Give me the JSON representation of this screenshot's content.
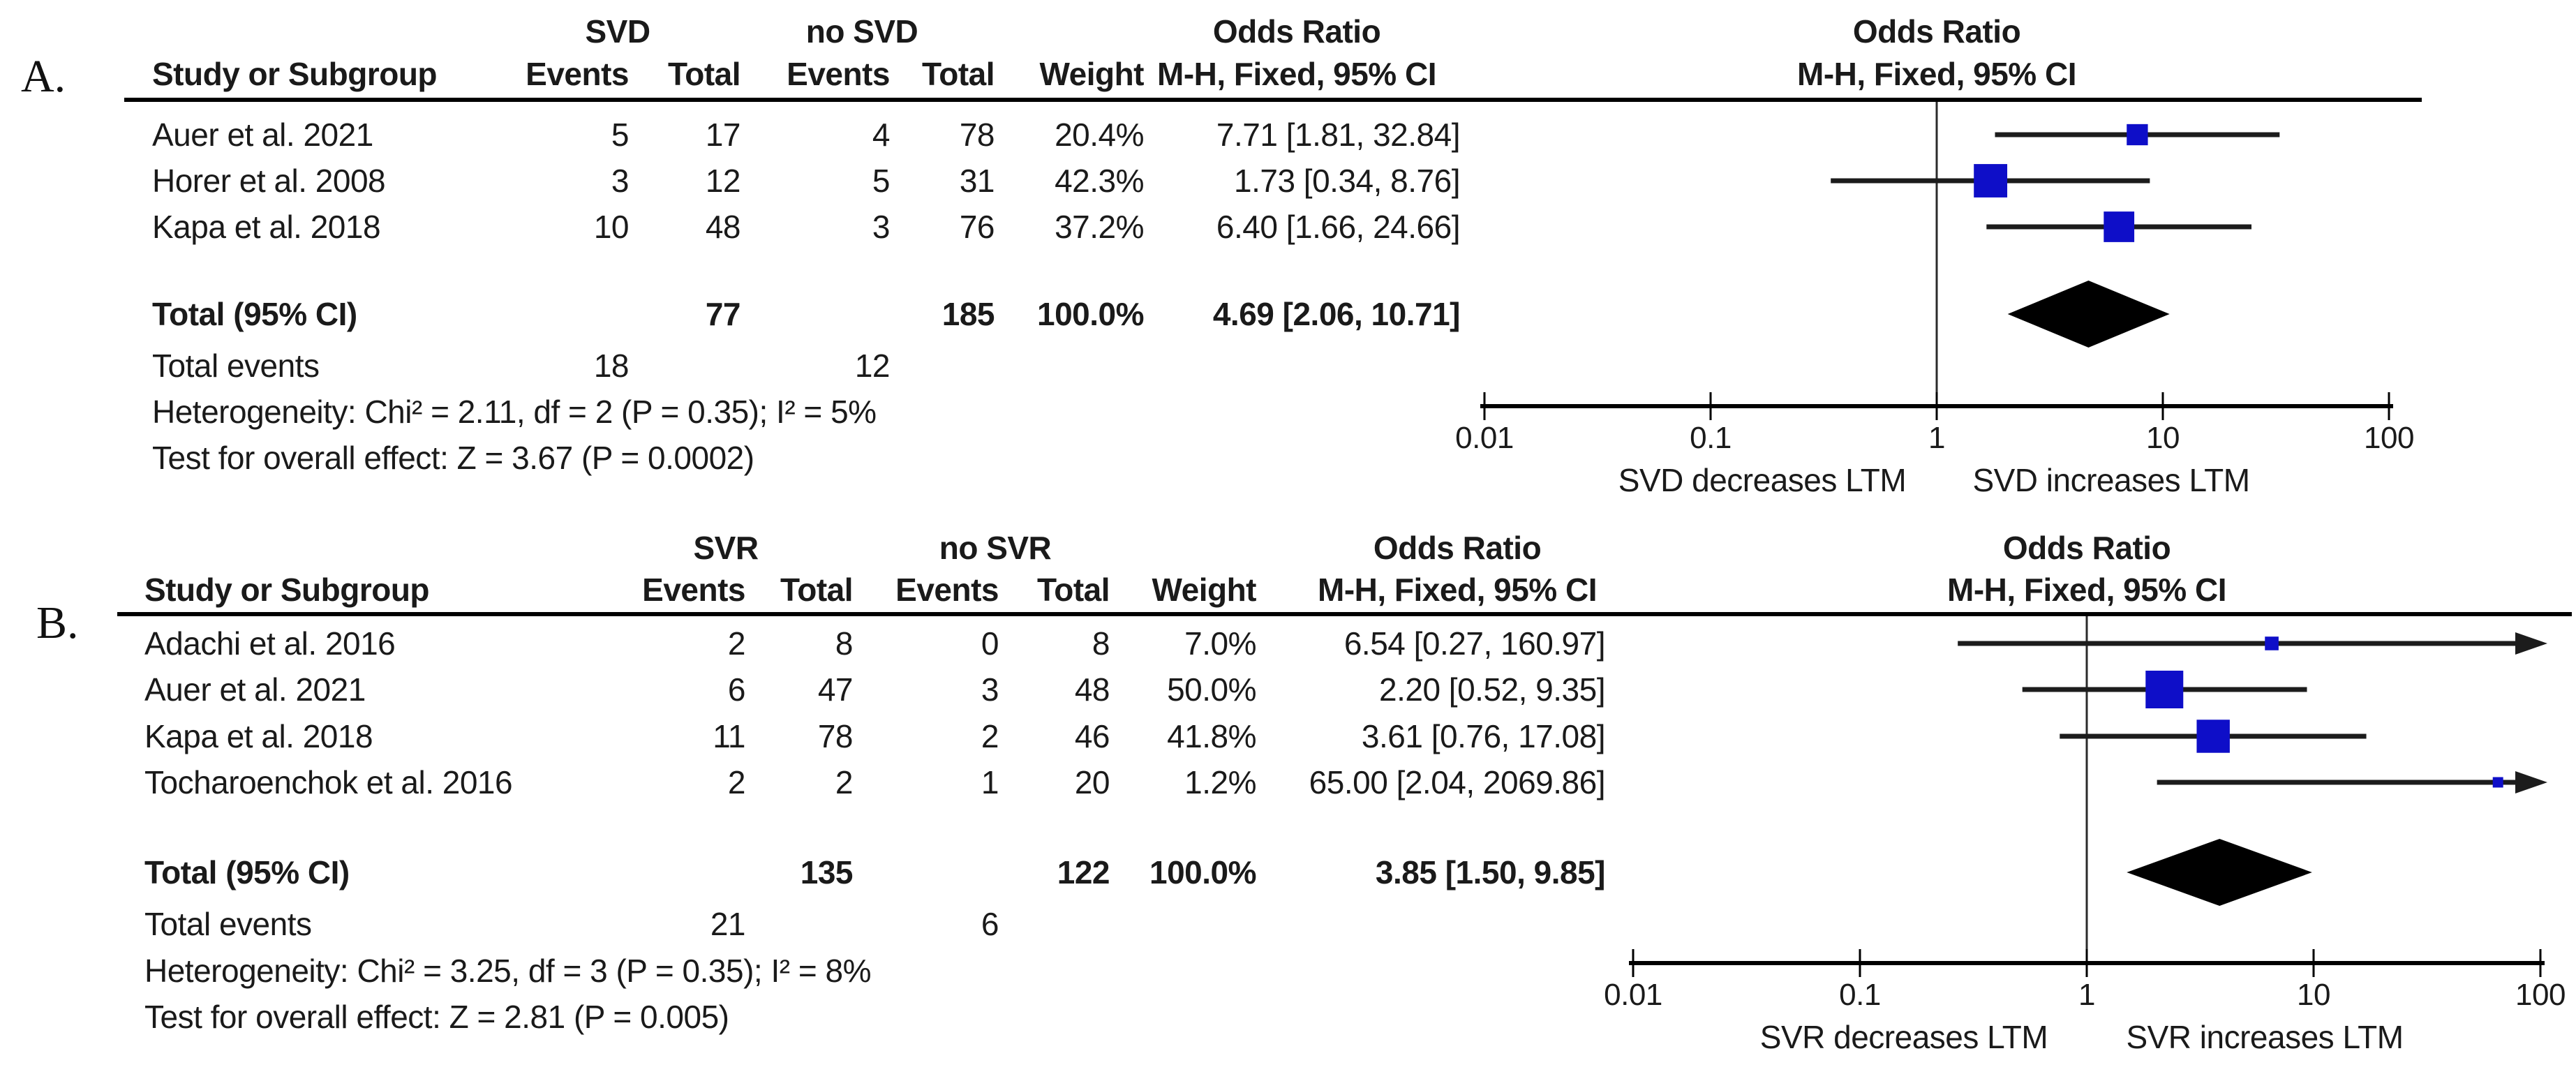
{
  "figure_type": "forest-plot-meta-analysis",
  "colors": {
    "square_blue": "#0E0EC8",
    "diamond_black": "#000000",
    "line_black": "#1c1c1c",
    "text": "#1a1a1a",
    "background": "#ffffff"
  },
  "chart_data": [
    {
      "type": "forest",
      "panel_id": "a",
      "panel_letter": "A.",
      "group_header": "SVD",
      "comparator_header": "no SVD",
      "or_column_header": "Odds Ratio",
      "or_column_subheader": "M-H, Fixed, 95% CI",
      "plot_header": "Odds Ratio",
      "plot_subheader": "M-H, Fixed, 95% CI",
      "column_headers": {
        "study": "Study or Subgroup",
        "events": "Events",
        "total": "Total",
        "weight": "Weight"
      },
      "studies": [
        {
          "study": "Auer et al. 2021",
          "events1": 5,
          "total1": 17,
          "events2": 4,
          "total2": 78,
          "weight": "20.4%",
          "weight_pct": 20.4,
          "or": 7.71,
          "ci_low": 1.81,
          "ci_high": 32.84,
          "or_text": "7.71 [1.81, 32.84]"
        },
        {
          "study": "Horer et al. 2008",
          "events1": 3,
          "total1": 12,
          "events2": 5,
          "total2": 31,
          "weight": "42.3%",
          "weight_pct": 42.3,
          "or": 1.73,
          "ci_low": 0.34,
          "ci_high": 8.76,
          "or_text": "1.73 [0.34, 8.76]"
        },
        {
          "study": "Kapa et al. 2018",
          "events1": 10,
          "total1": 48,
          "events2": 3,
          "total2": 76,
          "weight": "37.2%",
          "weight_pct": 37.2,
          "or": 6.4,
          "ci_low": 1.66,
          "ci_high": 24.66,
          "or_text": "6.40 [1.66, 24.66]"
        }
      ],
      "total": {
        "label": "Total (95% CI)",
        "total1": 77,
        "total2": 185,
        "weight": "100.0%",
        "or": 4.69,
        "ci_low": 2.06,
        "ci_high": 10.71,
        "or_text": "4.69 [2.06, 10.71]"
      },
      "total_events": {
        "label": "Total events",
        "events1": 18,
        "events2": 12
      },
      "heterogeneity": "Heterogeneity: Chi² = 2.11, df = 2 (P = 0.35); I² = 5%",
      "overall_effect": "Test for overall effect: Z = 3.67 (P = 0.0002)",
      "axis": {
        "scale": "log",
        "xlim": [
          0.01,
          100
        ],
        "ticks": [
          0.01,
          0.1,
          1,
          10,
          100
        ],
        "tick_labels": [
          "0.01",
          "0.1",
          "1",
          "10",
          "100"
        ]
      },
      "direction_labels": {
        "left": "SVD decreases LTM",
        "right": "SVD increases LTM"
      }
    },
    {
      "type": "forest",
      "panel_id": "b",
      "panel_letter": "B.",
      "group_header": "SVR",
      "comparator_header": "no SVR",
      "or_column_header": "Odds Ratio",
      "or_column_subheader": "M-H, Fixed, 95% CI",
      "plot_header": "Odds Ratio",
      "plot_subheader": "M-H, Fixed, 95% CI",
      "column_headers": {
        "study": "Study or Subgroup",
        "events": "Events",
        "total": "Total",
        "weight": "Weight"
      },
      "studies": [
        {
          "study": "Adachi et al. 2016",
          "events1": 2,
          "total1": 8,
          "events2": 0,
          "total2": 8,
          "weight": "7.0%",
          "weight_pct": 7.0,
          "or": 6.54,
          "ci_low": 0.27,
          "ci_high": 160.97,
          "or_text": "6.54 [0.27, 160.97]"
        },
        {
          "study": "Auer et al. 2021",
          "events1": 6,
          "total1": 47,
          "events2": 3,
          "total2": 48,
          "weight": "50.0%",
          "weight_pct": 50.0,
          "or": 2.2,
          "ci_low": 0.52,
          "ci_high": 9.35,
          "or_text": "2.20 [0.52, 9.35]"
        },
        {
          "study": "Kapa et al. 2018",
          "events1": 11,
          "total1": 78,
          "events2": 2,
          "total2": 46,
          "weight": "41.8%",
          "weight_pct": 41.8,
          "or": 3.61,
          "ci_low": 0.76,
          "ci_high": 17.08,
          "or_text": "3.61 [0.76, 17.08]"
        },
        {
          "study": "Tocharoenchok et al. 2016",
          "events1": 2,
          "total1": 2,
          "events2": 1,
          "total2": 20,
          "weight": "1.2%",
          "weight_pct": 1.2,
          "or": 65.0,
          "ci_low": 2.04,
          "ci_high": 2069.86,
          "or_text": "65.00 [2.04, 2069.86]"
        }
      ],
      "total": {
        "label": "Total (95% CI)",
        "total1": 135,
        "total2": 122,
        "weight": "100.0%",
        "or": 3.85,
        "ci_low": 1.5,
        "ci_high": 9.85,
        "or_text": "3.85 [1.50, 9.85]"
      },
      "total_events": {
        "label": "Total events",
        "events1": 21,
        "events2": 6
      },
      "heterogeneity": "Heterogeneity: Chi² = 3.25, df = 3 (P = 0.35); I² = 8%",
      "overall_effect": "Test for overall effect: Z = 2.81 (P = 0.005)",
      "axis": {
        "scale": "log",
        "xlim": [
          0.01,
          100
        ],
        "ticks": [
          0.01,
          0.1,
          1,
          10,
          100
        ],
        "tick_labels": [
          "0.01",
          "0.1",
          "1",
          "10",
          "100"
        ]
      },
      "direction_labels": {
        "left": "SVR decreases LTM",
        "right": "SVR increases LTM"
      }
    }
  ]
}
